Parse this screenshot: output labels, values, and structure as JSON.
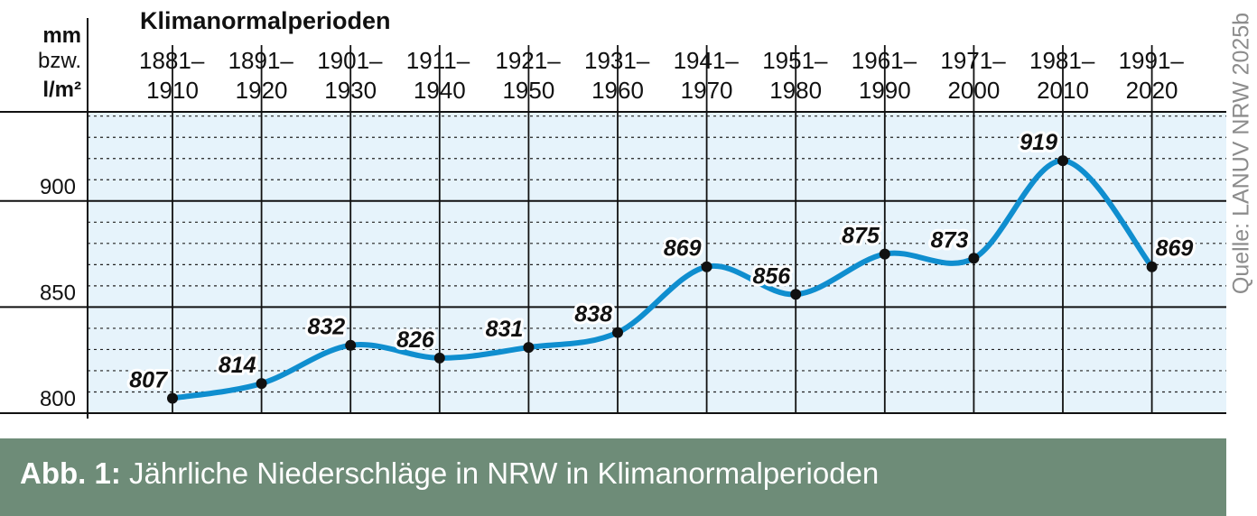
{
  "chart_data": {
    "type": "line",
    "title": "Klimanormalperioden",
    "ylabel_lines": [
      "mm",
      "bzw.",
      "l/m²"
    ],
    "categories_top": [
      "1881–",
      "1891–",
      "1901–",
      "1911–",
      "1921–",
      "1931–",
      "1941–",
      "1951–",
      "1961–",
      "1971–",
      "1981–",
      "1991–"
    ],
    "categories_bottom": [
      "1910",
      "1920",
      "1930",
      "1940",
      "1950",
      "1960",
      "1970",
      "1980",
      "1990",
      "2000",
      "2010",
      "2020"
    ],
    "values": [
      807,
      814,
      832,
      826,
      831,
      838,
      869,
      856,
      875,
      873,
      919,
      869
    ],
    "ylim": [
      800,
      942
    ],
    "yticks": [
      800,
      850,
      900
    ],
    "minor_step": 10,
    "grid": true,
    "line_color": "#0f8ecf",
    "background": "#e6f3fb"
  },
  "caption": {
    "label": "Abb. 1:",
    "text": "Jährliche Niederschläge in NRW in Klimanormalperioden"
  },
  "source": "Quelle: LANUV NRW 2025b"
}
